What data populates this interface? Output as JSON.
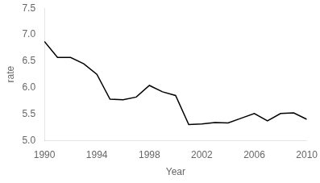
{
  "chart_data": {
    "type": "line",
    "x": [
      1990,
      1991,
      1992,
      1993,
      1994,
      1995,
      1996,
      1997,
      1998,
      1999,
      2000,
      2001,
      2002,
      2003,
      2004,
      2005,
      2006,
      2007,
      2008,
      2009,
      2010
    ],
    "values": [
      6.87,
      6.57,
      6.57,
      6.45,
      6.25,
      5.78,
      5.77,
      5.82,
      6.04,
      5.92,
      5.85,
      5.3,
      5.31,
      5.34,
      5.33,
      5.42,
      5.51,
      5.37,
      5.51,
      5.52,
      5.4
    ],
    "color": "#000000",
    "xlabel": "Year",
    "ylabel": "rate",
    "xlim": [
      1990,
      2010
    ],
    "ylim": [
      5.0,
      7.5
    ],
    "xticks": [
      1990,
      1994,
      1998,
      2002,
      2006,
      2010
    ],
    "yticks": [
      {
        "value": 5.0,
        "label": "5.0"
      },
      5.5,
      {
        "value": 6.0,
        "label": "6.0"
      },
      6.5,
      {
        "value": 7.0,
        "label": "7.0"
      },
      7.5
    ],
    "grid": false
  }
}
